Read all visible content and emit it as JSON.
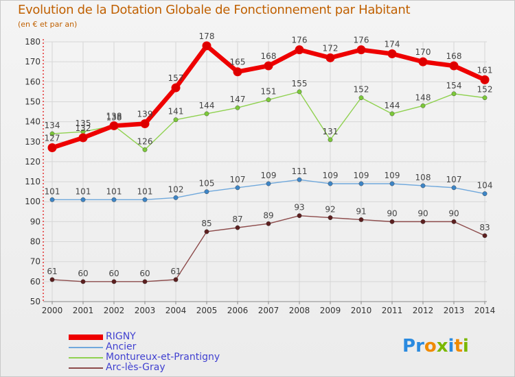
{
  "header": {
    "title": "Evolution de la Dotation Globale de Fonctionnement par Habitant",
    "subtitle": "(en € et par an)"
  },
  "logo": {
    "text": "Proxiti",
    "letters": [
      "P",
      "r",
      "o",
      "x",
      "i",
      "t",
      "i"
    ],
    "colors": [
      "#2a8adf",
      "#2a8adf",
      "#f08a00",
      "#7ab800",
      "#2a8adf",
      "#f08a00",
      "#7ab800"
    ]
  },
  "chart_data": {
    "type": "line",
    "title": "Evolution de la Dotation Globale de Fonctionnement par Habitant",
    "subtitle": "(en € et par an)",
    "xlabel": "",
    "ylabel": "",
    "x": [
      "2000",
      "2001",
      "2002",
      "2003",
      "2004",
      "2005",
      "2006",
      "2007",
      "2008",
      "2009",
      "2010",
      "2011",
      "2012",
      "2013",
      "2014"
    ],
    "ylim": [
      50,
      180
    ],
    "yticks": [
      50,
      60,
      70,
      80,
      90,
      100,
      110,
      120,
      130,
      140,
      150,
      160,
      170,
      180
    ],
    "grid": "horizontal",
    "legend_position": "bottom-left",
    "series": [
      {
        "name": "Montureux-et-Prantigny",
        "color": "#8fd14f",
        "marker": "#7cc83a",
        "emphasis": false,
        "values": [
          134,
          135,
          138,
          126,
          141,
          144,
          147,
          151,
          155,
          131,
          152,
          144,
          148,
          154,
          152
        ]
      },
      {
        "name": "Ancier",
        "color": "#6fa8dc",
        "marker": "#3d85c6",
        "emphasis": false,
        "values": [
          101,
          101,
          101,
          101,
          102,
          105,
          107,
          109,
          111,
          109,
          109,
          109,
          108,
          107,
          104
        ]
      },
      {
        "name": "Arc-lès-Gray",
        "color": "#8c4a4a",
        "marker": "#5c1f1f",
        "emphasis": false,
        "values": [
          61,
          60,
          60,
          60,
          61,
          85,
          87,
          89,
          93,
          92,
          91,
          90,
          90,
          90,
          83
        ]
      },
      {
        "name": "RIGNY",
        "color": "#ee0000",
        "marker": "#dd0000",
        "emphasis": true,
        "values": [
          127,
          132,
          138,
          139,
          157,
          178,
          165,
          168,
          176,
          172,
          176,
          174,
          170,
          168,
          161
        ]
      }
    ],
    "legend_order": [
      "RIGNY",
      "Ancier",
      "Montureux-et-Prantigny",
      "Arc-lès-Gray"
    ]
  }
}
